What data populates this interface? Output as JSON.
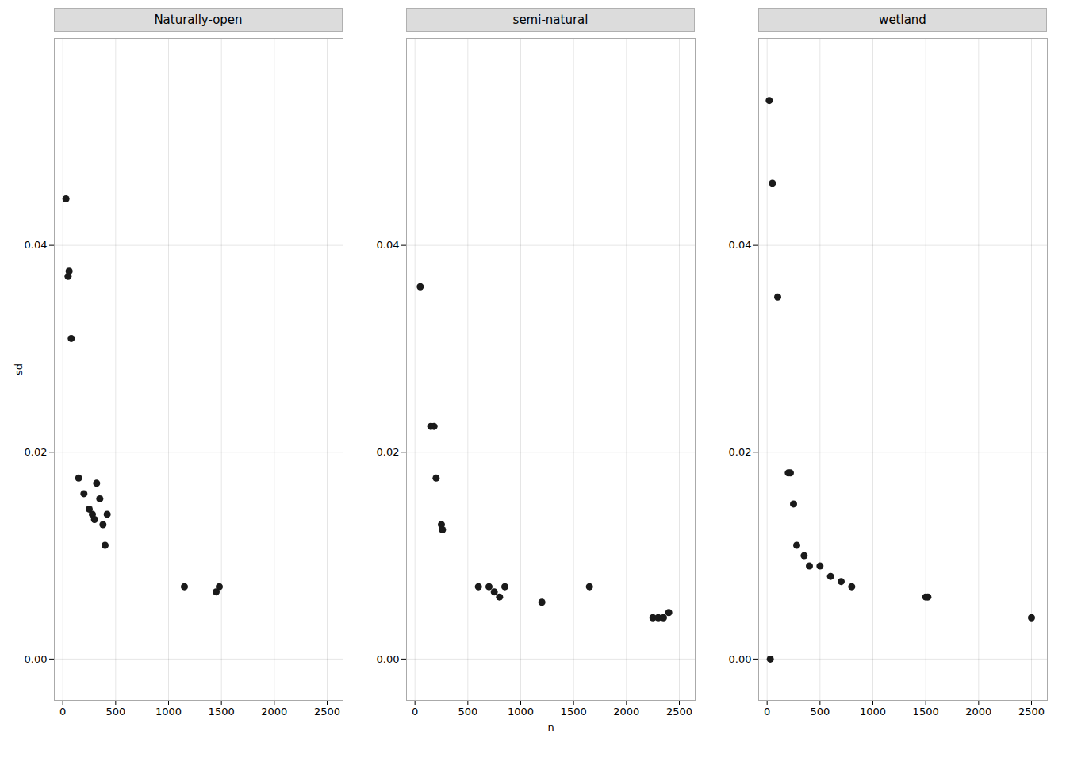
{
  "chart_data": [
    {
      "type": "scatter",
      "title": "Naturally-open",
      "ylabel": "sd",
      "x": [
        30,
        50,
        60,
        80,
        150,
        200,
        250,
        280,
        300,
        320,
        350,
        380,
        400,
        420,
        1150,
        1450,
        1480
      ],
      "values": [
        0.0445,
        0.037,
        0.0375,
        0.031,
        0.0175,
        0.016,
        0.0145,
        0.014,
        0.0135,
        0.017,
        0.0155,
        0.013,
        0.011,
        0.014,
        0.007,
        0.0065,
        0.007
      ],
      "color": "#1a1a1a",
      "xlim": [
        -80,
        2650
      ],
      "ylim": [
        -0.004,
        0.06
      ],
      "xticks": [
        0,
        500,
        1000,
        1500,
        2000,
        2500
      ],
      "yticks": [
        {
          "value": 0.0,
          "label": "0.00"
        },
        {
          "value": 0.02,
          "label": "0.02"
        },
        {
          "value": 0.04,
          "label": "0.04"
        }
      ],
      "grid": true
    },
    {
      "type": "scatter",
      "title": "semi-natural",
      "xlabel": "n",
      "x": [
        50,
        150,
        180,
        200,
        250,
        260,
        600,
        700,
        750,
        800,
        850,
        1200,
        1650,
        2250,
        2300,
        2350,
        2400
      ],
      "values": [
        0.036,
        0.0225,
        0.0225,
        0.0175,
        0.013,
        0.0125,
        0.007,
        0.007,
        0.0065,
        0.006,
        0.007,
        0.0055,
        0.007,
        0.004,
        0.004,
        0.004,
        0.0045
      ],
      "color": "#1a1a1a",
      "xlim": [
        -80,
        2650
      ],
      "ylim": [
        -0.004,
        0.06
      ],
      "xticks": [
        0,
        500,
        1000,
        1500,
        2000,
        2500
      ],
      "yticks": [
        {
          "value": 0.0,
          "label": "0.00"
        },
        {
          "value": 0.02,
          "label": "0.02"
        },
        {
          "value": 0.04,
          "label": "0.04"
        }
      ],
      "grid": true
    },
    {
      "type": "scatter",
      "title": "wetland",
      "x": [
        20,
        50,
        100,
        200,
        220,
        250,
        280,
        350,
        400,
        500,
        600,
        700,
        800,
        1500,
        1520,
        2500,
        30
      ],
      "values": [
        0.054,
        0.046,
        0.035,
        0.018,
        0.018,
        0.015,
        0.011,
        0.01,
        0.009,
        0.009,
        0.008,
        0.0075,
        0.007,
        0.006,
        0.006,
        0.004,
        0.0
      ],
      "color": "#1a1a1a",
      "xlim": [
        -80,
        2650
      ],
      "ylim": [
        -0.004,
        0.06
      ],
      "xticks": [
        0,
        500,
        1000,
        1500,
        2000,
        2500
      ],
      "yticks": [
        {
          "value": 0.0,
          "label": "0.00"
        },
        {
          "value": 0.02,
          "label": "0.02"
        },
        {
          "value": 0.04,
          "label": "0.04"
        }
      ],
      "grid": true
    }
  ]
}
